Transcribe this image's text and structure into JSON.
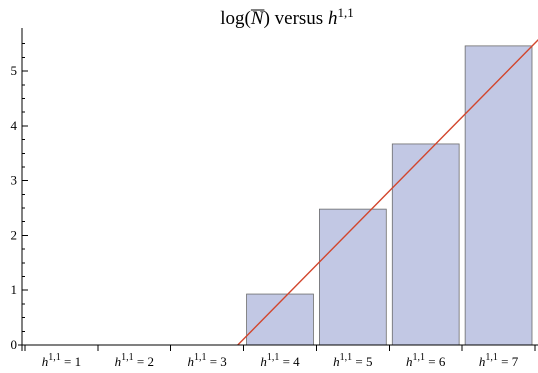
{
  "chart_data": {
    "type": "bar",
    "title": {
      "prefix": "log(",
      "symbol": "N",
      "middle": ") versus ",
      "var": "h",
      "sup": "1,1"
    },
    "category_var": "h",
    "category_sup": "1,1",
    "category_eq": " = ",
    "categories": [
      "1",
      "2",
      "3",
      "4",
      "5",
      "6",
      "7"
    ],
    "values": [
      0,
      0,
      0,
      0.93,
      2.48,
      3.67,
      5.46
    ],
    "y_ticks": [
      "0",
      "1",
      "2",
      "3",
      "4",
      "5"
    ],
    "ylim": [
      0,
      5.75
    ],
    "fit_line": {
      "x": [
        3.42,
        7.58
      ],
      "y": [
        0,
        5.62
      ]
    },
    "xlabel": "",
    "ylabel": "",
    "grid": false,
    "colors": {
      "bar_fill": "#c2c8e4",
      "bar_stroke": "#6b6b6b",
      "fit_line": "#d2462d",
      "axis": "#000000"
    }
  }
}
